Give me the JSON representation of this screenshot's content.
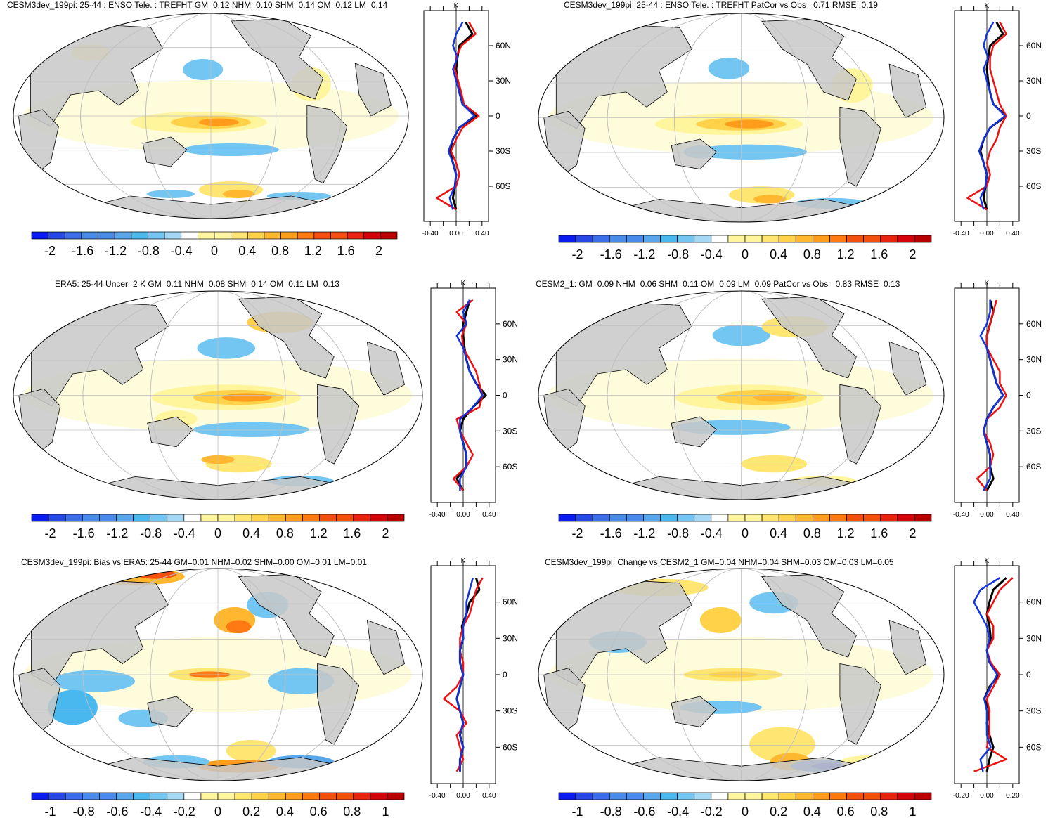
{
  "colors": {
    "land": "#c8c8c8",
    "grid": "#bfbfbf",
    "outline": "#000000",
    "series_model": "#000000",
    "series_obs_red": "#ee1111",
    "series_blue": "#1133dd",
    "palette": [
      "#0a1cf0",
      "#2748e4",
      "#3b6ee8",
      "#4a8ae8",
      "#58a7ec",
      "#48b8ef",
      "#73c6f2",
      "#a4d8f4",
      "#ffffff",
      "#fff59c",
      "#ffe673",
      "#ffd24a",
      "#ffb72f",
      "#ff9c1c",
      "#ff7a12",
      "#f4500d",
      "#e8230e",
      "#d4050a",
      "#b80000"
    ]
  },
  "panels": [
    {
      "id": "p1",
      "title": "CESM3dev_199pi: 25-44 : ENSO Tele. : TREFHT GM=0.12 NHM=0.10 SHM=0.14 OM=0.12 LM=0.14",
      "colorbar_labels": [
        "-2",
        "-1.6",
        "-1.2",
        "-0.8",
        "-0.4",
        "0",
        "0.4",
        "0.8",
        "1.2",
        "1.6",
        "2"
      ],
      "profile_ticks": [
        "-0.40",
        "0.00",
        "0.40"
      ],
      "lat_labels": [
        "60N",
        "30N",
        "0",
        "30S",
        "60S"
      ],
      "unit": "K"
    },
    {
      "id": "p2",
      "title": "CESM3dev_199pi: 25-44 : ENSO Tele. : TREFHT PatCor vs Obs =0.71 RMSE=0.19",
      "colorbar_labels": [
        "-2",
        "-1.6",
        "-1.2",
        "-0.8",
        "-0.4",
        "0",
        "0.4",
        "0.8",
        "1.2",
        "1.6",
        "2"
      ],
      "profile_ticks": [
        "-0.40",
        "0.00",
        "0.40"
      ],
      "lat_labels": [
        "60N",
        "30N",
        "0",
        "30S",
        "60S"
      ],
      "unit": "K"
    },
    {
      "id": "p3",
      "title": "ERA5: 25-44 Uncer=2 K GM=0.11 NHM=0.08 SHM=0.14 OM=0.11 LM=0.13",
      "colorbar_labels": [
        "-2",
        "-1.6",
        "-1.2",
        "-0.8",
        "-0.4",
        "0",
        "0.4",
        "0.8",
        "1.2",
        "1.6",
        "2"
      ],
      "profile_ticks": [
        "-0.40",
        "0.00",
        "0.40"
      ],
      "lat_labels": [
        "60N",
        "30N",
        "0",
        "30S",
        "60S"
      ],
      "unit": "K"
    },
    {
      "id": "p4",
      "title": "CESM2_1: GM=0.09 NHM=0.06 SHM=0.11 OM=0.09 LM=0.09 PatCor vs Obs =0.83 RMSE=0.13",
      "colorbar_labels": [
        "-2",
        "-1.6",
        "-1.2",
        "-0.8",
        "-0.4",
        "0",
        "0.4",
        "0.8",
        "1.2",
        "1.6",
        "2"
      ],
      "profile_ticks": [
        "-0.40",
        "0.00",
        "0.40"
      ],
      "lat_labels": [
        "60N",
        "30N",
        "0",
        "30S",
        "60S"
      ],
      "unit": "K"
    },
    {
      "id": "p5",
      "title": "CESM3dev_199pi: Bias vs ERA5: 25-44 GM=0.01 NHM=0.02 SHM=0.00 OM=0.01 LM=0.01",
      "colorbar_labels": [
        "-1",
        "-0.8",
        "-0.6",
        "-0.4",
        "-0.2",
        "0",
        "0.2",
        "0.4",
        "0.6",
        "0.8",
        "1"
      ],
      "profile_ticks": [
        "-0.40",
        "0.00",
        "0.40"
      ],
      "lat_labels": [
        "60N",
        "30N",
        "0",
        "30S",
        "60S"
      ],
      "unit": "K"
    },
    {
      "id": "p6",
      "title": "CESM3dev_199pi: Change vs CESM2_1 GM=0.04 NHM=0.04 SHM=0.03 OM=0.03 LM=0.05",
      "colorbar_labels": [
        "-1",
        "-0.8",
        "-0.6",
        "-0.4",
        "-0.2",
        "0",
        "0.2",
        "0.4",
        "0.6",
        "0.8",
        "1"
      ],
      "profile_ticks": [
        "-0.20",
        "0.00",
        "0.20"
      ],
      "lat_labels": [
        "60N",
        "30N",
        "0",
        "30S",
        "60S"
      ],
      "unit": "K"
    }
  ],
  "chart_data": [
    {
      "type": "heatmap",
      "title": "CESM3dev_199pi: 25-44 : ENSO Tele. : TREFHT GM=0.12 NHM=0.10 SHM=0.14 OM=0.12 LM=0.14",
      "projection": "Robinson (Pacific-centered)",
      "colorbar_range": [
        -2,
        2
      ],
      "zonal_mean_profile": {
        "xlim": [
          -0.5,
          0.5
        ],
        "latitudes": [
          80,
          70,
          60,
          50,
          40,
          30,
          20,
          10,
          0,
          -10,
          -20,
          -30,
          -40,
          -50,
          -60,
          -70,
          -80
        ],
        "series": [
          {
            "name": "model",
            "color": "black",
            "values": [
              0.15,
              0.25,
              0.05,
              0.02,
              0.0,
              0.02,
              0.05,
              0.1,
              0.3,
              0.05,
              -0.05,
              -0.1,
              -0.05,
              0.0,
              -0.02,
              -0.05,
              0.0
            ]
          },
          {
            "name": "obs",
            "color": "red",
            "values": [
              0.2,
              0.3,
              0.08,
              0.0,
              -0.02,
              0.03,
              0.08,
              0.12,
              0.35,
              0.1,
              0.0,
              -0.08,
              0.0,
              0.05,
              0.0,
              -0.3,
              0.0
            ]
          },
          {
            "name": "blue",
            "color": "blue",
            "values": [
              0.1,
              0.0,
              -0.05,
              0.02,
              -0.05,
              0.0,
              0.05,
              0.1,
              0.28,
              0.05,
              -0.05,
              -0.12,
              -0.05,
              0.0,
              -0.02,
              -0.1,
              -0.05
            ]
          }
        ]
      }
    },
    {
      "type": "heatmap",
      "title": "CESM3dev_199pi: 25-44 : ENSO Tele. : TREFHT PatCor vs Obs =0.71 RMSE=0.19",
      "projection": "Robinson (Pacific-centered)",
      "colorbar_range": [
        -2,
        2
      ],
      "zonal_mean_profile": {
        "xlim": [
          -0.5,
          0.5
        ],
        "latitudes": [
          80,
          70,
          60,
          50,
          40,
          30,
          20,
          10,
          0,
          -10,
          -20,
          -30,
          -40,
          -50,
          -60,
          -70,
          -80
        ],
        "series": [
          {
            "name": "model",
            "color": "black",
            "values": [
              0.15,
              0.25,
              0.05,
              0.02,
              0.0,
              0.02,
              0.05,
              0.1,
              0.3,
              0.05,
              -0.05,
              -0.1,
              -0.05,
              0.0,
              -0.02,
              -0.05,
              0.0
            ]
          },
          {
            "name": "obs",
            "color": "red",
            "values": [
              0.2,
              0.3,
              0.1,
              0.05,
              0.05,
              0.1,
              0.15,
              0.2,
              0.3,
              0.2,
              0.15,
              0.05,
              0.0,
              0.05,
              0.0,
              -0.3,
              0.0
            ]
          },
          {
            "name": "blue",
            "color": "blue",
            "values": [
              0.1,
              0.0,
              -0.05,
              0.02,
              -0.05,
              0.0,
              0.05,
              0.1,
              0.28,
              0.05,
              -0.05,
              -0.12,
              -0.05,
              0.0,
              -0.02,
              -0.1,
              -0.05
            ]
          }
        ]
      }
    },
    {
      "type": "heatmap",
      "title": "ERA5: 25-44 Uncer=2 K GM=0.11 NHM=0.08 SHM=0.14 OM=0.11 LM=0.13",
      "projection": "Robinson (Pacific-centered)",
      "colorbar_range": [
        -2,
        2
      ],
      "zonal_mean_profile": {
        "xlim": [
          -0.5,
          0.5
        ],
        "latitudes": [
          80,
          70,
          60,
          50,
          40,
          30,
          20,
          10,
          0,
          -10,
          -20,
          -30,
          -40,
          -50,
          -60,
          -70,
          -80
        ],
        "series": [
          {
            "name": "model",
            "color": "black",
            "values": [
              0.1,
              0.05,
              0.0,
              0.0,
              0.02,
              0.05,
              0.1,
              0.2,
              0.35,
              0.15,
              0.0,
              -0.05,
              0.0,
              0.05,
              0.05,
              -0.1,
              0.0
            ]
          },
          {
            "name": "obs",
            "color": "red",
            "values": [
              0.15,
              -0.1,
              0.05,
              -0.02,
              0.0,
              0.1,
              0.2,
              0.25,
              0.3,
              0.25,
              -0.1,
              -0.05,
              0.05,
              0.15,
              0.05,
              -0.15,
              0.0
            ]
          },
          {
            "name": "blue",
            "color": "blue",
            "values": [
              0.1,
              0.0,
              0.05,
              -0.1,
              0.0,
              0.05,
              0.1,
              0.2,
              0.3,
              0.15,
              -0.05,
              -0.05,
              0.0,
              0.05,
              0.05,
              -0.05,
              -0.05
            ]
          }
        ]
      }
    },
    {
      "type": "heatmap",
      "title": "CESM2_1: GM=0.09 NHM=0.06 SHM=0.11 OM=0.09 LM=0.09 PatCor vs Obs =0.83 RMSE=0.13",
      "projection": "Robinson (Pacific-centered)",
      "colorbar_range": [
        -2,
        2
      ],
      "zonal_mean_profile": {
        "xlim": [
          -0.5,
          0.5
        ],
        "latitudes": [
          80,
          70,
          60,
          50,
          40,
          30,
          20,
          10,
          0,
          -10,
          -20,
          -30,
          -40,
          -50,
          -60,
          -70,
          -80
        ],
        "series": [
          {
            "name": "model",
            "color": "black",
            "values": [
              0.05,
              0.1,
              0.05,
              0.0,
              0.0,
              0.05,
              0.1,
              0.15,
              0.25,
              0.1,
              0.0,
              -0.05,
              0.0,
              0.05,
              0.05,
              0.1,
              0.0
            ]
          },
          {
            "name": "obs",
            "color": "red",
            "values": [
              0.15,
              0.1,
              0.05,
              0.0,
              0.0,
              0.1,
              0.2,
              0.2,
              0.3,
              0.2,
              0.0,
              -0.05,
              0.05,
              0.1,
              0.05,
              -0.15,
              0.0
            ]
          },
          {
            "name": "blue",
            "color": "blue",
            "values": [
              0.05,
              0.05,
              0.0,
              -0.1,
              0.0,
              0.05,
              0.1,
              0.15,
              0.25,
              0.1,
              0.0,
              -0.05,
              0.0,
              0.05,
              0.05,
              0.05,
              -0.05
            ]
          }
        ]
      }
    },
    {
      "type": "heatmap",
      "title": "CESM3dev_199pi: Bias vs ERA5: 25-44 GM=0.01 NHM=0.02 SHM=0.00 OM=0.01 LM=0.01",
      "projection": "Robinson (Pacific-centered)",
      "colorbar_range": [
        -1,
        1
      ],
      "zonal_mean_profile": {
        "xlim": [
          -0.5,
          0.5
        ],
        "latitudes": [
          80,
          70,
          60,
          50,
          40,
          30,
          20,
          10,
          0,
          -10,
          -20,
          -30,
          -40,
          -50,
          -60,
          -70,
          -80
        ],
        "series": [
          {
            "name": "model",
            "color": "black",
            "values": [
              0.2,
              0.25,
              0.1,
              0.05,
              -0.02,
              0.0,
              -0.05,
              -0.05,
              0.0,
              -0.05,
              -0.1,
              -0.05,
              0.0,
              -0.05,
              0.0,
              -0.05,
              -0.05
            ]
          },
          {
            "name": "obs",
            "color": "red",
            "values": [
              0.3,
              0.2,
              0.15,
              0.1,
              0.0,
              -0.05,
              -0.05,
              0.0,
              0.0,
              -0.1,
              -0.3,
              -0.05,
              0.05,
              -0.1,
              -0.05,
              0.0,
              -0.1
            ]
          },
          {
            "name": "blue",
            "color": "blue",
            "values": [
              0.15,
              0.1,
              0.05,
              0.05,
              0.0,
              0.0,
              -0.05,
              -0.05,
              0.0,
              -0.05,
              -0.1,
              -0.05,
              0.0,
              -0.05,
              0.0,
              -0.05,
              -0.05
            ]
          }
        ]
      }
    },
    {
      "type": "heatmap",
      "title": "CESM3dev_199pi: Change vs CESM2_1 GM=0.04 NHM=0.04 SHM=0.03 OM=0.03 LM=0.05",
      "projection": "Robinson (Pacific-centered)",
      "colorbar_range": [
        -1,
        1
      ],
      "zonal_mean_profile": {
        "xlim": [
          -0.25,
          0.25
        ],
        "latitudes": [
          80,
          70,
          60,
          50,
          40,
          30,
          20,
          10,
          0,
          -10,
          -20,
          -30,
          -40,
          -50,
          -60,
          -70,
          -80
        ],
        "series": [
          {
            "name": "model",
            "color": "black",
            "values": [
              0.15,
              0.05,
              0.02,
              0.0,
              0.02,
              0.03,
              0.0,
              0.02,
              0.1,
              0.02,
              -0.02,
              0.02,
              0.0,
              0.02,
              0.05,
              0.02,
              0.0
            ]
          },
          {
            "name": "obs",
            "color": "red",
            "values": [
              0.2,
              0.1,
              0.05,
              0.0,
              0.05,
              0.05,
              0.0,
              0.03,
              0.1,
              0.05,
              0.0,
              0.02,
              0.02,
              0.02,
              0.0,
              0.15,
              -0.1
            ]
          },
          {
            "name": "blue",
            "color": "blue",
            "values": [
              0.1,
              -0.05,
              -0.1,
              -0.05,
              0.0,
              0.02,
              0.0,
              0.02,
              0.08,
              0.03,
              -0.02,
              0.0,
              0.0,
              0.0,
              0.03,
              -0.05,
              -0.03
            ]
          }
        ]
      }
    }
  ]
}
